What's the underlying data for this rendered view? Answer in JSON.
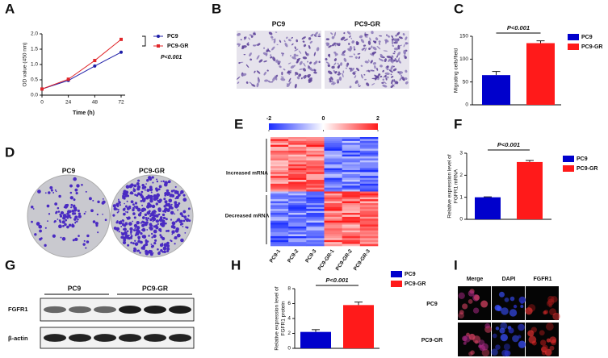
{
  "panel_labels": [
    "A",
    "B",
    "C",
    "D",
    "E",
    "F",
    "G",
    "H",
    "I"
  ],
  "chart_data": [
    {
      "type": "line",
      "xlabel": "Time (h)",
      "ylabel": [
        "OD value (450 nm)"
      ],
      "x": [
        0,
        24,
        48,
        72
      ],
      "xlim": [
        0,
        72
      ],
      "xticks": [
        0,
        24,
        48,
        72
      ],
      "ylim": [
        0,
        2.0
      ],
      "yticks": [
        {
          "value": 0,
          "label": "0.0"
        },
        0.5,
        {
          "value": 1,
          "label": "1.0"
        },
        1.5,
        {
          "value": 2,
          "label": "2.0"
        }
      ],
      "series": [
        {
          "name": "PC9",
          "color": "#1f1fa8",
          "values": [
            0.2,
            0.48,
            0.95,
            1.4
          ]
        },
        {
          "name": "PC9-GR",
          "color": "#e0262a",
          "values": [
            0.2,
            0.52,
            1.13,
            1.82
          ]
        }
      ],
      "annotation": "P<0.001",
      "legend": "right",
      "grid": false
    },
    {
      "type": "bar",
      "ylabel": [
        "Migrating cells/field"
      ],
      "ylim": [
        0,
        150
      ],
      "yticks": [
        0,
        50,
        100,
        150
      ],
      "series": [
        {
          "name": "PC9",
          "color": "#0000cc",
          "values": [
            65
          ],
          "errors": [
            8
          ]
        },
        {
          "name": "PC9-GR",
          "color": "#ff1a1a",
          "values": [
            135
          ],
          "errors": [
            5
          ]
        }
      ],
      "annotation": "P<0.001",
      "legend": "right",
      "grid": false
    },
    {
      "type": "bar",
      "ylabel": [
        "Relative expression level of",
        "FGFR1 mRNA"
      ],
      "ylim": [
        0,
        3
      ],
      "yticks": [
        0,
        1,
        2,
        3
      ],
      "series": [
        {
          "name": "PC9",
          "color": "#0000cc",
          "values": [
            1.0
          ],
          "errors": [
            0.02
          ]
        },
        {
          "name": "PC9-GR",
          "color": "#ff1a1a",
          "values": [
            2.6
          ],
          "errors": [
            0.07
          ]
        }
      ],
      "annotation": "P<0.001",
      "legend": "right",
      "grid": false
    },
    {
      "type": "bar",
      "ylabel": [
        "Relative expression level of",
        "FGFR1 protein"
      ],
      "ylim": [
        0,
        8
      ],
      "yticks": [
        0,
        2,
        4,
        6,
        8
      ],
      "series": [
        {
          "name": "PC9",
          "color": "#0000cc",
          "values": [
            2.2
          ],
          "errors": [
            0.3
          ]
        },
        {
          "name": "PC9-GR",
          "color": "#ff1a1a",
          "values": [
            5.8
          ],
          "errors": [
            0.4
          ]
        }
      ],
      "annotation": "P<0.001",
      "legend": "right",
      "grid": false
    }
  ],
  "panel_b": {
    "labels": [
      "PC9",
      "PC9-GR"
    ]
  },
  "panel_d": {
    "labels": [
      "PC9",
      "PC9-GR"
    ]
  },
  "panel_e": {
    "colorbar_ticks": [
      -2,
      0,
      2
    ],
    "row_groups": [
      "Increased mRNA",
      "Decreased mRNA"
    ],
    "columns": [
      "PC9-1",
      "PC9-2",
      "PC9-3",
      "PC9-GR-1",
      "PC9-GR-2",
      "PC9-GR-3"
    ]
  },
  "panel_g": {
    "groups": [
      "PC9",
      "PC9-GR"
    ],
    "rows": [
      "FGFR1",
      "β-actin"
    ]
  },
  "panel_i": {
    "columns": [
      "Merge",
      "DAPI",
      "FGFR1"
    ],
    "rows": [
      "PC9",
      "PC9-GR"
    ]
  }
}
